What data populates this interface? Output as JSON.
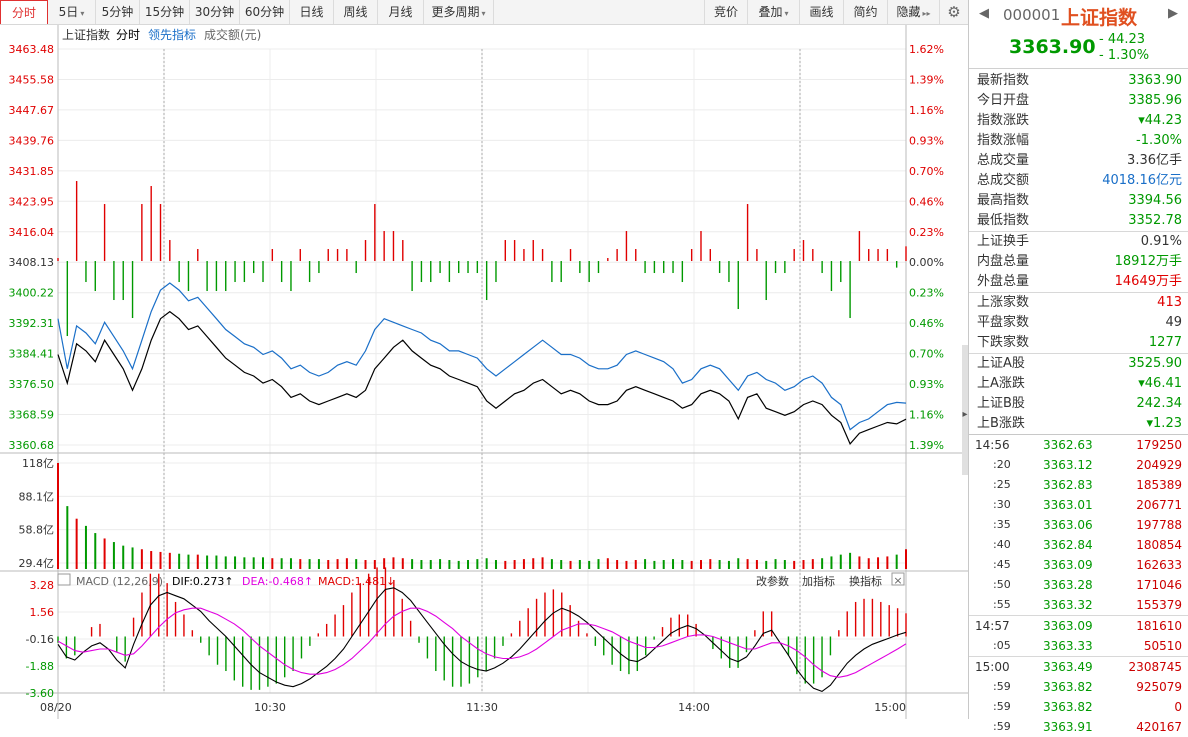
{
  "toolbar": {
    "left": [
      {
        "label": "分时",
        "active": true
      },
      {
        "label": "5日",
        "dropdown": true
      },
      {
        "label": "5分钟"
      },
      {
        "label": "15分钟"
      },
      {
        "label": "30分钟"
      },
      {
        "label": "60分钟"
      },
      {
        "label": "日线"
      },
      {
        "label": "周线"
      },
      {
        "label": "月线"
      },
      {
        "label": "更多周期",
        "dropdown": true
      }
    ],
    "right": [
      {
        "label": "竞价"
      },
      {
        "label": "叠加",
        "dropdown": true
      },
      {
        "label": "画线"
      },
      {
        "label": "简约"
      },
      {
        "label": "隐藏",
        "arrows": "▸▸"
      }
    ],
    "gear_icon": "gear-icon"
  },
  "legend": {
    "index": "上证指数",
    "fenshi": "分时",
    "leading": "领先指标",
    "volume": "成交额(元)"
  },
  "colors": {
    "up": "#e00000",
    "down": "#009900",
    "blue": "#1a6fc8",
    "magenta": "#e000e0",
    "grid": "#e6e6e6"
  },
  "price_axis": {
    "left": [
      "3463.48",
      "3455.58",
      "3447.67",
      "3439.76",
      "3431.85",
      "3423.95",
      "3416.04",
      "3408.13",
      "3400.22",
      "3392.31",
      "3384.41",
      "3376.50",
      "3368.59",
      "3360.68"
    ],
    "right": [
      "1.62%",
      "1.39%",
      "1.16%",
      "0.93%",
      "0.70%",
      "0.46%",
      "0.23%",
      "0.00%",
      "0.23%",
      "0.46%",
      "0.70%",
      "0.93%",
      "1.16%",
      "1.39%"
    ]
  },
  "volume_axis": [
    "118亿",
    "88.1亿",
    "58.8亿",
    "29.4亿"
  ],
  "macd_bar": {
    "title": "MACD (12,26,9)",
    "dif": "DIF:0.273↑",
    "dea": "DEA:-0.468↑",
    "macd": "MACD:1.481↓",
    "btn1": "改参数",
    "btn2": "加指标",
    "btn3": "换指标"
  },
  "macd_axis": [
    "3.28",
    "1.56",
    "-0.16",
    "-1.88",
    "-3.60"
  ],
  "time_axis": [
    "08/20",
    "10:30",
    "11:30",
    "14:00",
    "15:00"
  ],
  "chart_data": {
    "type": "line",
    "price_range": [
      3356.7,
      3467.4
    ],
    "prev_close": 3408.13,
    "price_line": [
      3382,
      3374,
      3385,
      3383,
      3380,
      3386,
      3382,
      3378,
      3372,
      3378,
      3386,
      3392,
      3394,
      3392,
      3389,
      3390,
      3387,
      3384,
      3381,
      3379,
      3377,
      3376,
      3374,
      3375,
      3373,
      3370,
      3371,
      3369,
      3368,
      3369,
      3370,
      3371,
      3370,
      3372,
      3378,
      3381,
      3384,
      3386,
      3383,
      3381,
      3379,
      3378,
      3376,
      3375,
      3374,
      3373,
      3369,
      3367,
      3369,
      3371,
      3372,
      3374,
      3375,
      3373,
      3371,
      3372,
      3371,
      3369,
      3368,
      3368,
      3369,
      3372,
      3373,
      3372,
      3371,
      3370,
      3369,
      3367,
      3368,
      3371,
      3372,
      3371,
      3369,
      3364,
      3370,
      3371,
      3367,
      3366,
      3365,
      3366,
      3368,
      3369,
      3368,
      3365,
      3363,
      3357,
      3360,
      3361,
      3362,
      3363,
      3362.6,
      3363.9
    ],
    "leading_line": [
      3392,
      3378,
      3390,
      3388,
      3385,
      3391,
      3387,
      3383,
      3378,
      3386,
      3394,
      3400,
      3402,
      3400,
      3397,
      3398,
      3395,
      3392,
      3389,
      3387,
      3385,
      3384,
      3382,
      3383,
      3381,
      3378,
      3379,
      3377,
      3376,
      3377,
      3379,
      3380,
      3379,
      3383,
      3389,
      3392,
      3391,
      3390,
      3389,
      3388,
      3386,
      3385,
      3383,
      3383,
      3382,
      3381,
      3378,
      3376,
      3378,
      3380,
      3382,
      3384,
      3386,
      3384,
      3382,
      3382,
      3381,
      3379,
      3378,
      3378,
      3379,
      3382,
      3383,
      3382,
      3381,
      3380,
      3378,
      3374,
      3375,
      3378,
      3379,
      3378,
      3375,
      3372,
      3376,
      3377,
      3375,
      3374,
      3372,
      3373,
      3375,
      3376,
      3374,
      3370,
      3368,
      3361,
      3363,
      3364,
      3366,
      3368,
      3368.6,
      3368.4
    ],
    "volume": [
      118,
      70,
      56,
      48,
      40,
      34,
      30,
      26,
      24,
      22,
      20,
      19,
      18,
      17,
      16,
      16,
      15,
      15,
      14,
      14,
      13,
      13,
      13,
      12,
      12,
      12,
      11,
      11,
      11,
      10,
      11,
      12,
      11,
      10,
      10,
      12,
      13,
      12,
      11,
      10,
      10,
      11,
      10,
      9,
      10,
      11,
      12,
      10,
      9,
      10,
      11,
      12,
      13,
      11,
      10,
      9,
      10,
      9,
      11,
      12,
      10,
      9,
      10,
      11,
      9,
      10,
      11,
      10,
      9,
      10,
      11,
      10,
      9,
      12,
      11,
      10,
      9,
      11,
      10,
      9,
      10,
      11,
      12,
      14,
      16,
      18,
      14,
      12,
      13,
      14,
      16,
      22
    ],
    "volume_max": 118,
    "macd_range": [
      -3.6,
      3.28
    ],
    "dif": [
      -0.5,
      -1.3,
      -1.5,
      -1.0,
      -0.6,
      -0.4,
      -0.8,
      -1.5,
      -2.0,
      -0.5,
      0.8,
      2.0,
      2.6,
      2.8,
      2.6,
      2.4,
      2.0,
      1.6,
      1.0,
      0.5,
      0.0,
      -0.6,
      -1.2,
      -1.8,
      -2.3,
      -2.6,
      -2.9,
      -3.1,
      -3.2,
      -3.0,
      -2.7,
      -2.3,
      -1.9,
      -1.4,
      -0.8,
      0.0,
      0.8,
      1.6,
      2.4,
      3.0,
      3.1,
      2.8,
      2.3,
      1.6,
      0.9,
      0.2,
      -0.5,
      -1.1,
      -1.6,
      -1.9,
      -2.1,
      -2.2,
      -2.0,
      -1.7,
      -1.3,
      -0.8,
      -0.2,
      0.4,
      1.0,
      1.5,
      1.8,
      1.6,
      1.3,
      0.9,
      0.4,
      -0.1,
      -0.6,
      -1.1,
      -1.5,
      -1.6,
      -1.3,
      -0.8,
      -0.3,
      0.2,
      0.5,
      0.7,
      0.5,
      0.1,
      -0.4,
      -0.9,
      -1.4,
      -1.6,
      -1.3,
      -0.6,
      0.2,
      0.4,
      -0.4,
      -1.2,
      -2.1,
      -2.8,
      -3.3,
      -3.5,
      -3.1,
      -2.4,
      -1.7,
      -1.2,
      -0.8,
      -0.5,
      -0.3,
      -0.1,
      0.1,
      0.27
    ],
    "dea": [
      -0.3,
      -0.6,
      -0.9,
      -1.0,
      -0.9,
      -0.8,
      -0.8,
      -1.0,
      -1.2,
      -1.1,
      -0.6,
      0.0,
      0.6,
      1.1,
      1.5,
      1.7,
      1.8,
      1.8,
      1.6,
      1.4,
      1.1,
      0.8,
      0.4,
      -0.1,
      -0.6,
      -1.0,
      -1.4,
      -1.8,
      -2.1,
      -2.3,
      -2.4,
      -2.4,
      -2.3,
      -2.1,
      -1.8,
      -1.4,
      -0.9,
      -0.4,
      0.2,
      0.8,
      1.3,
      1.6,
      1.8,
      1.8,
      1.6,
      1.3,
      0.9,
      0.5,
      0.0,
      -0.4,
      -0.8,
      -1.1,
      -1.3,
      -1.4,
      -1.4,
      -1.3,
      -1.1,
      -0.8,
      -0.4,
      0.0,
      0.4,
      0.6,
      0.8,
      0.8,
      0.7,
      0.5,
      0.3,
      0.0,
      -0.3,
      -0.5,
      -0.7,
      -0.7,
      -0.6,
      -0.4,
      -0.2,
      0.0,
      0.1,
      0.1,
      0.0,
      -0.2,
      -0.4,
      -0.6,
      -0.8,
      -0.8,
      -0.6,
      -0.4,
      -0.4,
      -0.6,
      -0.9,
      -1.3,
      -1.8,
      -2.2,
      -2.5,
      -2.6,
      -2.5,
      -2.3,
      -2.0,
      -1.7,
      -1.4,
      -1.1,
      -0.8,
      -0.468
    ]
  },
  "sidebar": {
    "code": "000001",
    "name": "上证指数",
    "price": "3363.90",
    "change": "- 44.23",
    "change_pct": "- 1.30%",
    "stats_group1": [
      {
        "label": "最新指数",
        "value": "3363.90",
        "color": "green"
      },
      {
        "label": "今日开盘",
        "value": "3385.96",
        "color": "green"
      },
      {
        "label": "指数涨跌",
        "value": "▾44.23",
        "color": "green"
      },
      {
        "label": "指数涨幅",
        "value": "-1.30%",
        "color": "green"
      },
      {
        "label": "总成交量",
        "value": "3.36亿手",
        "color": "dark"
      },
      {
        "label": "总成交额",
        "value": "4018.16亿元",
        "color": "blue"
      },
      {
        "label": "最高指数",
        "value": "3394.56",
        "color": "green"
      },
      {
        "label": "最低指数",
        "value": "3352.78",
        "color": "green"
      }
    ],
    "stats_group2": [
      {
        "label": "上证换手",
        "value": "0.91%",
        "color": "dark"
      },
      {
        "label": "内盘总量",
        "value": "18912万手",
        "color": "green"
      },
      {
        "label": "外盘总量",
        "value": "14649万手",
        "color": "red"
      }
    ],
    "stats_group3": [
      {
        "label": "上涨家数",
        "value": "413",
        "color": "red"
      },
      {
        "label": "平盘家数",
        "value": "49",
        "color": "dark"
      },
      {
        "label": "下跌家数",
        "value": "1277",
        "color": "green"
      }
    ],
    "stats_group4": [
      {
        "label": "上证A股",
        "value": "3525.90",
        "color": "green"
      },
      {
        "label": "上A涨跌",
        "value": "▾46.41",
        "color": "green"
      },
      {
        "label": "上证B股",
        "value": "242.34",
        "color": "green"
      },
      {
        "label": "上B涨跌",
        "value": "▾1.23",
        "color": "green"
      }
    ],
    "ticks": [
      {
        "time": "14:56",
        "price": "3362.63",
        "vol": "179250",
        "sep": false
      },
      {
        "time": ":20",
        "price": "3363.12",
        "vol": "204929",
        "sep": false
      },
      {
        "time": ":25",
        "price": "3362.83",
        "vol": "185389",
        "sep": false
      },
      {
        "time": ":30",
        "price": "3363.01",
        "vol": "206771",
        "sep": false
      },
      {
        "time": ":35",
        "price": "3363.06",
        "vol": "197788",
        "sep": false
      },
      {
        "time": ":40",
        "price": "3362.84",
        "vol": "180854",
        "sep": false
      },
      {
        "time": ":45",
        "price": "3363.09",
        "vol": "162633",
        "sep": false
      },
      {
        "time": ":50",
        "price": "3363.28",
        "vol": "171046",
        "sep": false
      },
      {
        "time": ":55",
        "price": "3363.32",
        "vol": "155379",
        "sep": false
      },
      {
        "time": "14:57",
        "price": "3363.09",
        "vol": "181610",
        "sep": true
      },
      {
        "time": ":05",
        "price": "3363.33",
        "vol": "50510",
        "sep": false
      },
      {
        "time": "15:00",
        "price": "3363.49",
        "vol": "2308745",
        "sep": true
      },
      {
        "time": ":59",
        "price": "3363.82",
        "vol": "925079",
        "sep": false
      },
      {
        "time": ":59",
        "price": "3363.82",
        "vol": "0",
        "sep": false
      },
      {
        "time": ":59",
        "price": "3363.91",
        "vol": "420167",
        "sep": false
      }
    ]
  }
}
